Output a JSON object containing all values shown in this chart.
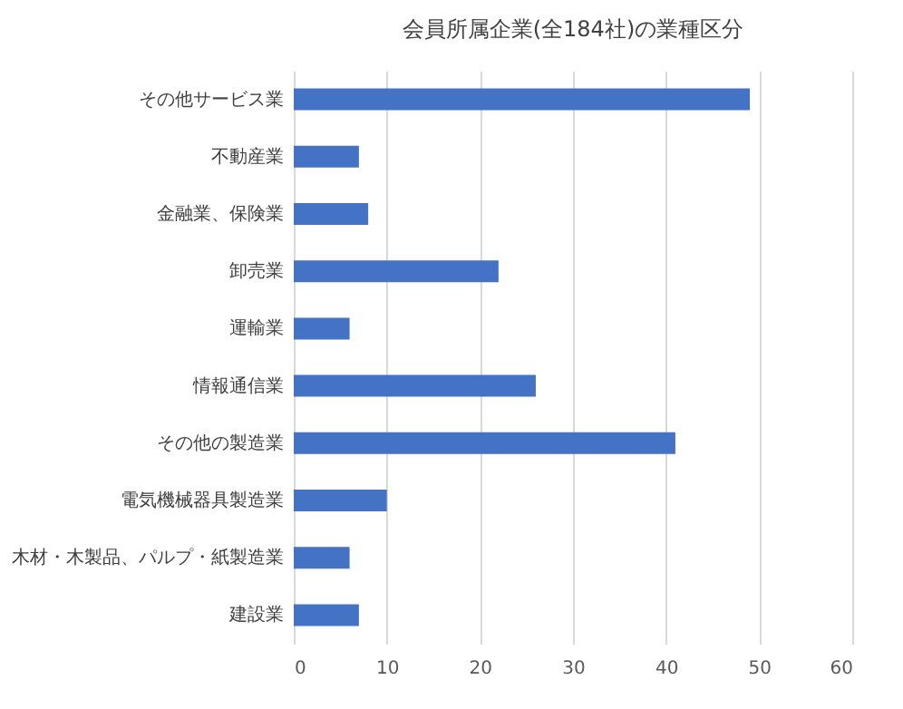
{
  "chart_data": {
    "type": "bar",
    "orientation": "horizontal",
    "title": "会員所属企業(全184社)の業種区分",
    "categories": [
      "その他サービス業",
      "不動産業",
      "金融業、保険業",
      "卸売業",
      "運輸業",
      "情報通信業",
      "その他の製造業",
      "電気機械器具製造業",
      "木材・木製品、パルプ・紙製造業",
      "建設業"
    ],
    "values": [
      49,
      7,
      8,
      22,
      6,
      26,
      41,
      10,
      6,
      7
    ],
    "color": "#4472c4",
    "xlim": [
      0,
      60
    ],
    "xticks": [
      0,
      10,
      20,
      30,
      40,
      50,
      60
    ],
    "grid": "x"
  }
}
